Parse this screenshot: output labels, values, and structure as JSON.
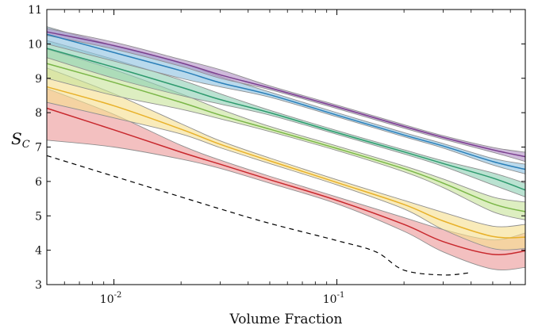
{
  "chart_data": {
    "type": "line",
    "xlabel": "Volume Fraction",
    "ylabel": {
      "main": "S",
      "sub": "C"
    },
    "x_scale": "log",
    "xlim": [
      0.005,
      0.7
    ],
    "ylim": [
      3,
      11
    ],
    "x_ticks": [
      {
        "value": 0.01,
        "base": "10",
        "exp": "-2"
      },
      {
        "value": 0.1,
        "base": "10",
        "exp": "-1"
      }
    ],
    "y_ticks": [
      {
        "value": 3,
        "label": "3"
      },
      {
        "value": 4,
        "label": "4"
      },
      {
        "value": 5,
        "label": "5"
      },
      {
        "value": 6,
        "label": "6"
      },
      {
        "value": 7,
        "label": "7"
      },
      {
        "value": 8,
        "label": "8"
      },
      {
        "value": 9,
        "label": "9"
      },
      {
        "value": 10,
        "label": "10"
      },
      {
        "value": 11,
        "label": "11"
      }
    ],
    "grid": false,
    "series": [
      {
        "color": "#7a3f8f",
        "fill": "#b28fc5",
        "x": [
          0.005,
          0.01,
          0.02,
          0.03,
          0.05,
          0.1,
          0.2,
          0.3,
          0.5,
          0.7
        ],
        "y": [
          10.35,
          9.95,
          9.45,
          9.1,
          8.72,
          8.17,
          7.6,
          7.28,
          6.92,
          6.72
        ],
        "upper": [
          10.45,
          10.05,
          9.55,
          9.25,
          8.78,
          8.22,
          7.65,
          7.33,
          6.99,
          6.85
        ],
        "lower": [
          10.25,
          9.85,
          9.35,
          9.0,
          8.67,
          8.12,
          7.55,
          7.23,
          6.85,
          6.58
        ]
      },
      {
        "color": "#2a7fb8",
        "fill": "#8ec1e0",
        "x": [
          0.005,
          0.01,
          0.02,
          0.03,
          0.05,
          0.1,
          0.2,
          0.3,
          0.5,
          0.7
        ],
        "y": [
          10.28,
          9.75,
          9.22,
          8.87,
          8.52,
          7.93,
          7.35,
          7.03,
          6.58,
          6.35
        ],
        "upper": [
          10.5,
          9.95,
          9.45,
          9.05,
          8.6,
          8.0,
          7.42,
          7.1,
          6.67,
          6.5
        ],
        "lower": [
          10.0,
          9.5,
          9.0,
          8.75,
          8.45,
          7.88,
          7.3,
          6.97,
          6.48,
          6.22
        ]
      },
      {
        "color": "#2e9a6e",
        "fill": "#8fd1b4",
        "x": [
          0.005,
          0.01,
          0.02,
          0.03,
          0.05,
          0.1,
          0.2,
          0.3,
          0.5,
          0.7
        ],
        "y": [
          9.87,
          9.32,
          8.74,
          8.38,
          8.0,
          7.42,
          6.86,
          6.52,
          6.1,
          5.75
        ],
        "upper": [
          10.1,
          9.55,
          8.95,
          8.55,
          8.07,
          7.48,
          6.92,
          6.6,
          6.25,
          5.95
        ],
        "lower": [
          9.6,
          9.0,
          8.5,
          8.25,
          7.93,
          7.37,
          6.8,
          6.44,
          5.9,
          5.55
        ]
      },
      {
        "color": "#7ab648",
        "fill": "#c8e39b",
        "x": [
          0.005,
          0.01,
          0.02,
          0.03,
          0.05,
          0.1,
          0.2,
          0.3,
          0.5,
          0.7
        ],
        "y": [
          9.43,
          8.88,
          8.3,
          7.93,
          7.52,
          6.96,
          6.37,
          5.95,
          5.35,
          5.12
        ],
        "upper": [
          9.85,
          9.25,
          8.55,
          8.1,
          7.6,
          7.03,
          6.45,
          6.07,
          5.55,
          5.4
        ],
        "lower": [
          9.0,
          8.5,
          8.1,
          7.82,
          7.45,
          6.9,
          6.28,
          5.82,
          5.12,
          4.88
        ]
      },
      {
        "color": "#e8b12a",
        "fill": "#f6df8f",
        "x": [
          0.005,
          0.01,
          0.02,
          0.03,
          0.05,
          0.1,
          0.2,
          0.3,
          0.5,
          0.7
        ],
        "y": [
          8.75,
          8.2,
          7.52,
          7.08,
          6.6,
          5.97,
          5.33,
          4.85,
          4.4,
          4.38
        ],
        "upper": [
          9.3,
          8.55,
          7.68,
          7.18,
          6.68,
          6.05,
          5.45,
          5.1,
          4.7,
          4.75
        ],
        "lower": [
          8.3,
          7.85,
          7.38,
          6.98,
          6.52,
          5.9,
          5.2,
          4.6,
          4.05,
          4.05
        ]
      },
      {
        "color": "#c8282d",
        "fill": "#ec9a9a",
        "x": [
          0.005,
          0.01,
          0.02,
          0.03,
          0.05,
          0.1,
          0.2,
          0.3,
          0.5,
          0.7
        ],
        "y": [
          8.13,
          7.5,
          6.85,
          6.5,
          6.05,
          5.45,
          4.75,
          4.25,
          3.88,
          3.98
        ],
        "upper": [
          8.7,
          7.95,
          7.05,
          6.62,
          6.15,
          5.55,
          4.95,
          4.6,
          4.3,
          4.5
        ],
        "lower": [
          7.2,
          7.0,
          6.65,
          6.38,
          5.95,
          5.35,
          4.55,
          3.95,
          3.45,
          3.5
        ]
      }
    ],
    "reference_line": {
      "color": "#000000",
      "dash": "dashed",
      "x": [
        0.005,
        0.01,
        0.02,
        0.03,
        0.05,
        0.1,
        0.15,
        0.2,
        0.3,
        0.4
      ],
      "y": [
        6.75,
        6.15,
        5.55,
        5.2,
        4.78,
        4.28,
        3.95,
        3.42,
        3.28,
        3.35
      ]
    }
  }
}
